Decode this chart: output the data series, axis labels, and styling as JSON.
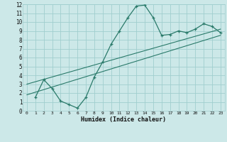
{
  "xlabel": "Humidex (Indice chaleur)",
  "bg_color": "#cce8e8",
  "line_color": "#2a7a6a",
  "xlim": [
    -0.5,
    23.5
  ],
  "ylim": [
    0,
    12
  ],
  "xticks": [
    0,
    1,
    2,
    3,
    4,
    5,
    6,
    7,
    8,
    9,
    10,
    11,
    12,
    13,
    14,
    15,
    16,
    17,
    18,
    19,
    20,
    21,
    22,
    23
  ],
  "yticks": [
    0,
    1,
    2,
    3,
    4,
    5,
    6,
    7,
    8,
    9,
    10,
    11,
    12
  ],
  "grid_color": "#a0cece",
  "series1_x": [
    1,
    2,
    3,
    4,
    5,
    6,
    7,
    8,
    9,
    10,
    11,
    12,
    13,
    14,
    15,
    16,
    17,
    18,
    19,
    20,
    21,
    22,
    23
  ],
  "series1_y": [
    1.5,
    3.5,
    2.5,
    1.1,
    0.7,
    0.3,
    1.5,
    3.8,
    5.5,
    7.5,
    9.0,
    10.5,
    11.8,
    11.9,
    10.5,
    8.5,
    8.6,
    9.0,
    8.8,
    9.2,
    9.8,
    9.5,
    8.8
  ],
  "series2_x": [
    0,
    23
  ],
  "series2_y": [
    1.8,
    8.5
  ],
  "series3_x": [
    0,
    23
  ],
  "series3_y": [
    3.0,
    9.2
  ]
}
